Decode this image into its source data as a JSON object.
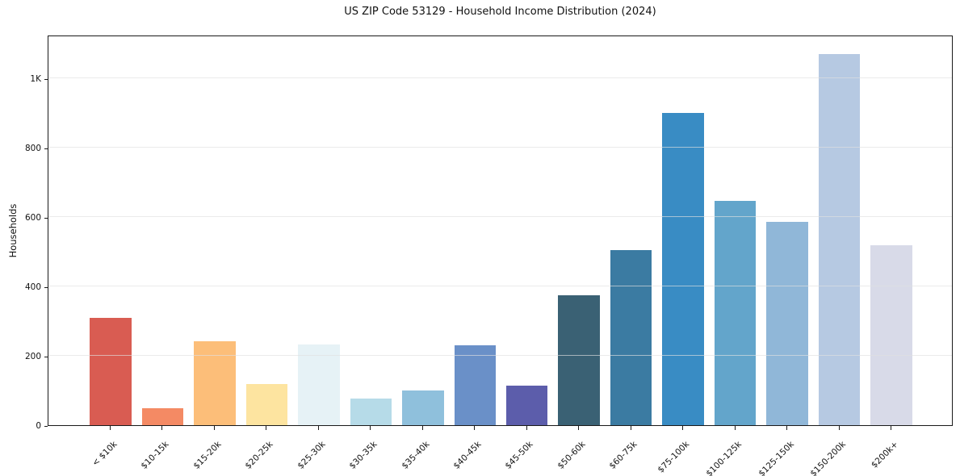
{
  "figure": {
    "background": "#ffffff"
  },
  "chart_data": {
    "type": "bar",
    "title": "US ZIP Code 53129 - Household Income Distribution (2024)",
    "xlabel": "",
    "ylabel": "Households",
    "categories": [
      "< $10k",
      "$10-15k",
      "$15-20k",
      "$20-25k",
      "$25-30k",
      "$30-35k",
      "$35-40k",
      "$40-45k",
      "$45-50k",
      "$50-60k",
      "$60-75k",
      "$75-100k",
      "$100-125k",
      "$125-150k",
      "$150-200k",
      "$200k+"
    ],
    "values": [
      310,
      48,
      241,
      118,
      232,
      76,
      100,
      230,
      114,
      375,
      505,
      900,
      648,
      587,
      1070,
      520
    ],
    "bar_colors": [
      "#d95c52",
      "#f48a64",
      "#fcbe79",
      "#fde4a0",
      "#e6f2f6",
      "#b6dbe8",
      "#8fc0dc",
      "#6a90c8",
      "#5c5dab",
      "#3a6174",
      "#3b7ba2",
      "#398cc4",
      "#63a5cb",
      "#90b7d8",
      "#b6c9e2",
      "#d8dae8"
    ],
    "ylim": [
      0,
      1126
    ],
    "yticks": {
      "values": [
        0,
        200,
        400,
        600,
        800,
        1000
      ],
      "labels": [
        "0",
        "200",
        "400",
        "600",
        "800",
        "1K"
      ]
    },
    "grid": "horizontal",
    "legend": "none",
    "x_tick_rotation_deg": 45
  }
}
